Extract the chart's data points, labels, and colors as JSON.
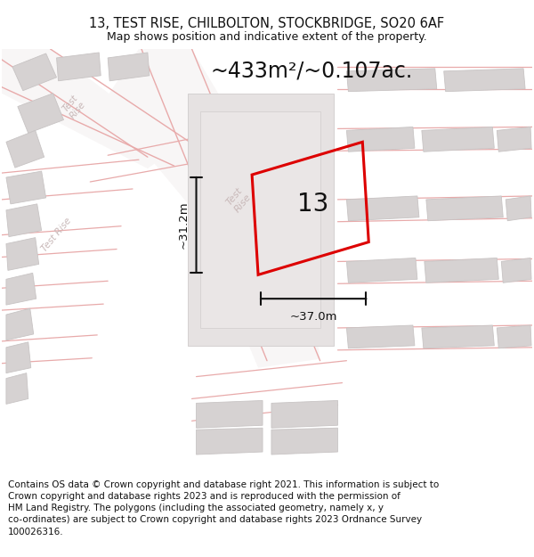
{
  "title_line1": "13, TEST RISE, CHILBOLTON, STOCKBRIDGE, SO20 6AF",
  "title_line2": "Map shows position and indicative extent of the property.",
  "area_text": "~433m²/~0.107ac.",
  "label_number": "13",
  "dim_height": "~31.2m",
  "dim_width": "~37.0m",
  "footer_text": "Contains OS data © Crown copyright and database right 2021. This information is subject to Crown copyright and database rights 2023 and is reproduced with the permission of HM Land Registry. The polygons (including the associated geometry, namely x, y co-ordinates) are subject to Crown copyright and database rights 2023 Ordnance Survey 100026316.",
  "map_bg": "#f2f0f0",
  "building_color": "#d6d2d2",
  "building_edge": "#c8c4c4",
  "road_color": "#ffffff",
  "red_line_color": "#dd0000",
  "light_red": "#e8aaaa",
  "black_color": "#111111",
  "title_fontsize": 10.5,
  "subtitle_fontsize": 9,
  "area_fontsize": 17,
  "label_fontsize": 20,
  "dim_fontsize": 9.5,
  "footer_fontsize": 7.5,
  "road_label_color": "#c8b8b8",
  "road_label_size": 7.5
}
